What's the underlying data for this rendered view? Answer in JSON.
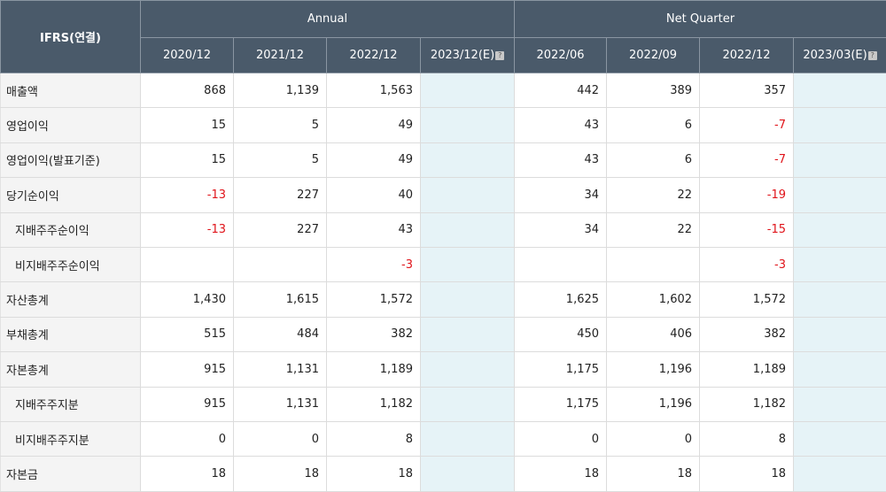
{
  "header": {
    "corner": "IFRS(연결)",
    "group_annual": "Annual",
    "group_quarter": "Net Quarter",
    "annual_cols": [
      "2020/12",
      "2021/12",
      "2022/12",
      "2023/12(E)"
    ],
    "quarter_cols": [
      "2022/06",
      "2022/09",
      "2022/12",
      "2023/03(E)"
    ],
    "info_icon": "question-icon"
  },
  "rows": [
    {
      "label": "매출액",
      "indent": false,
      "annual": [
        "868",
        "1,139",
        "1,563",
        ""
      ],
      "quarter": [
        "442",
        "389",
        "357",
        ""
      ]
    },
    {
      "label": "영업이익",
      "indent": false,
      "annual": [
        "15",
        "5",
        "49",
        ""
      ],
      "quarter": [
        "43",
        "6",
        "-7",
        ""
      ]
    },
    {
      "label": "영업이익(발표기준)",
      "indent": false,
      "annual": [
        "15",
        "5",
        "49",
        ""
      ],
      "quarter": [
        "43",
        "6",
        "-7",
        ""
      ]
    },
    {
      "label": "당기순이익",
      "indent": false,
      "annual": [
        "-13",
        "227",
        "40",
        ""
      ],
      "quarter": [
        "34",
        "22",
        "-19",
        ""
      ]
    },
    {
      "label": "지배주주순이익",
      "indent": true,
      "annual": [
        "-13",
        "227",
        "43",
        ""
      ],
      "quarter": [
        "34",
        "22",
        "-15",
        ""
      ]
    },
    {
      "label": "비지배주주순이익",
      "indent": true,
      "annual": [
        "",
        "",
        "-3",
        ""
      ],
      "quarter": [
        "",
        "",
        "-3",
        ""
      ]
    },
    {
      "label": "자산총계",
      "indent": false,
      "annual": [
        "1,430",
        "1,615",
        "1,572",
        ""
      ],
      "quarter": [
        "1,625",
        "1,602",
        "1,572",
        ""
      ]
    },
    {
      "label": "부채총계",
      "indent": false,
      "annual": [
        "515",
        "484",
        "382",
        ""
      ],
      "quarter": [
        "450",
        "406",
        "382",
        ""
      ]
    },
    {
      "label": "자본총계",
      "indent": false,
      "annual": [
        "915",
        "1,131",
        "1,189",
        ""
      ],
      "quarter": [
        "1,175",
        "1,196",
        "1,189",
        ""
      ]
    },
    {
      "label": "지배주주지분",
      "indent": true,
      "annual": [
        "915",
        "1,131",
        "1,182",
        ""
      ],
      "quarter": [
        "1,175",
        "1,196",
        "1,182",
        ""
      ]
    },
    {
      "label": "비지배주주지분",
      "indent": true,
      "annual": [
        "0",
        "0",
        "8",
        ""
      ],
      "quarter": [
        "0",
        "0",
        "8",
        ""
      ]
    },
    {
      "label": "자본금",
      "indent": false,
      "annual": [
        "18",
        "18",
        "18",
        ""
      ],
      "quarter": [
        "18",
        "18",
        "18",
        ""
      ]
    }
  ],
  "colors": {
    "header_bg": "#4a5a6a",
    "label_bg": "#f4f4f4",
    "estimate_bg": "#e6f3f7",
    "negative": "#e0141a"
  }
}
